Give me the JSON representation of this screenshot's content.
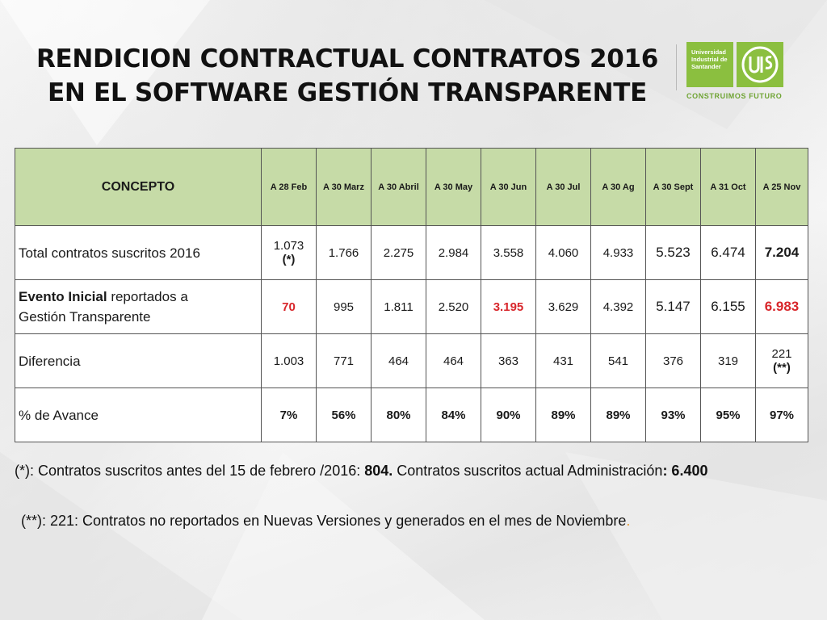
{
  "title": {
    "line1": "RENDICION CONTRACTUAL CONTRATOS 2016",
    "line2": "EN EL SOFTWARE GESTIÓN TRANSPARENTE"
  },
  "logo": {
    "name_line1": "Universidad",
    "name_line2": "Industrial de",
    "name_line3": "Santander",
    "slogan": "CONSTRUIMOS FUTURO",
    "color": "#8bbf3f"
  },
  "table": {
    "header": {
      "concept": "CONCEPTO",
      "columns": [
        "A 28 Feb",
        "A 30 Marz",
        "A 30 Abril",
        "A 30 May",
        "A 30 Jun",
        "A 30 Jul",
        "A 30 Ag",
        "A 30 Sept",
        "A 31 Oct",
        "A 25 Nov"
      ]
    },
    "row_total": {
      "label": "Total contratos suscritos 2016",
      "first_value": "1.073",
      "first_note": "(*)",
      "values": [
        "1.766",
        "2.275",
        "2.984",
        "3.558",
        "4.060",
        "4.933",
        "5.523",
        "6.474",
        "7.204"
      ]
    },
    "row_evento": {
      "label_bold": "Evento Inicial",
      "label_rest_1": " reportados  a",
      "label_rest_2": "Gestión Transparente",
      "values": [
        "70",
        "995",
        "1.811",
        "2.520",
        "3.195",
        "3.629",
        "4.392",
        "5.147",
        "6.155",
        "6.983"
      ]
    },
    "row_diferencia": {
      "label": "Diferencia",
      "values": [
        "1.003",
        "771",
        "464",
        "464",
        "363",
        "431",
        "541",
        "376",
        "319"
      ],
      "last_value": "221",
      "last_note": "(**)"
    },
    "row_avance": {
      "label": "%  de Avance",
      "values": [
        "7%",
        "56%",
        "80%",
        "84%",
        "90%",
        "89%",
        "89%",
        "93%",
        "95%",
        "97%"
      ]
    }
  },
  "notes": {
    "note1_a": "(*): Contratos suscritos antes del 15 de febrero /2016: ",
    "note1_b": "804.",
    "note1_c": "  Contratos suscritos actual Administración",
    "note1_d": ": 6.400",
    "note2_a": "(**): 221: Contratos no reportados en Nuevas Versiones y generados en el mes de Noviembre",
    "note2_b": "."
  },
  "colors": {
    "header_bg": "#c6dba7",
    "highlight_red": "#d8262b"
  }
}
